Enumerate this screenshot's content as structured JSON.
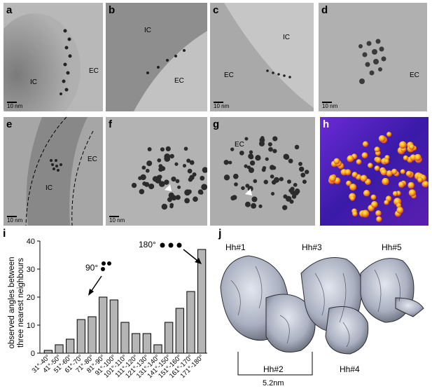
{
  "panels": {
    "a": {
      "letter": "a",
      "ic": "IC",
      "ec": "EC",
      "scale": "10 nm"
    },
    "b": {
      "letter": "b",
      "ic": "IC",
      "ec": "EC"
    },
    "c": {
      "letter": "c",
      "ic": "IC",
      "ec": "EC",
      "scale": "10 nm"
    },
    "d": {
      "letter": "d",
      "ec": "EC",
      "scale": "10 nm"
    },
    "e": {
      "letter": "e",
      "ic": "IC",
      "ec": "EC",
      "scale": "10 nm"
    },
    "f": {
      "letter": "f",
      "scale": "10 nm"
    },
    "g": {
      "letter": "g",
      "ec": "EC",
      "scale": "10 nm"
    },
    "h": {
      "letter": "h"
    },
    "i": {
      "letter": "i"
    },
    "j": {
      "letter": "j"
    }
  },
  "chart_data": {
    "type": "bar",
    "ylabel": "observed angles between three nearest neighbours",
    "ylim": [
      0,
      40
    ],
    "yticks": [
      0,
      10,
      20,
      30,
      40
    ],
    "categories": [
      "31°-40°",
      "41°-50°",
      "51°-60°",
      "61°-70°",
      "71°-80°",
      "81°-90°",
      "91°-100°",
      "101°-110°",
      "111°-120°",
      "121°-130°",
      "131°-140°",
      "141°-150°",
      "151°-160°",
      "161°-170°",
      "171°-180°"
    ],
    "values": [
      1,
      3,
      5,
      12,
      13,
      20,
      19,
      11,
      7,
      7,
      3,
      11,
      16,
      22,
      37
    ],
    "annotations": [
      "90°",
      "180°"
    ]
  },
  "structure": {
    "labels_top": [
      "Hh#1",
      "Hh#3",
      "Hh#5"
    ],
    "labels_bottom": [
      "Hh#2",
      "Hh#4"
    ],
    "distance": "5.2nm"
  }
}
